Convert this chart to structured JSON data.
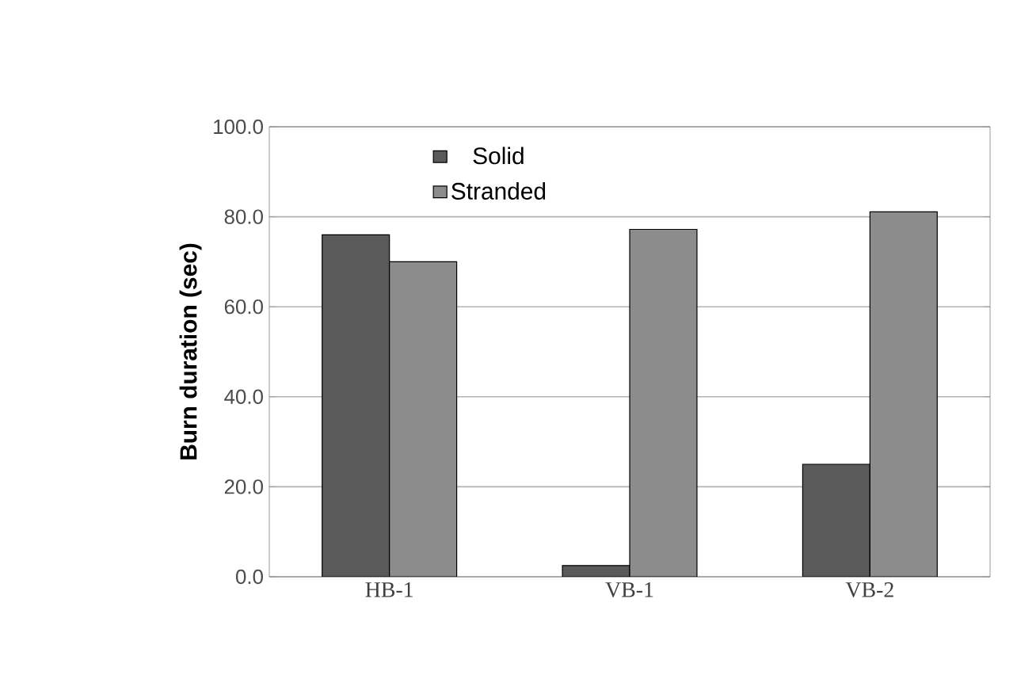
{
  "chart_data": {
    "type": "bar",
    "ylabel": "Burn duration (sec)",
    "categories": [
      "HB-1",
      "VB-1",
      "VB-2"
    ],
    "series": [
      {
        "name": "Solid",
        "color": "#5a5a5a",
        "values": [
          76,
          2.5,
          25
        ]
      },
      {
        "name": "Stranded",
        "color": "#8c8c8c",
        "values": [
          70,
          77.2,
          81.1
        ]
      }
    ],
    "ylim": [
      0,
      100
    ],
    "yticks": [
      {
        "value": 0,
        "label": "0.0"
      },
      {
        "value": 20,
        "label": "20.0"
      },
      {
        "value": 40,
        "label": "40.0"
      },
      {
        "value": 60,
        "label": "60.0"
      },
      {
        "value": 80,
        "label": "80.0"
      },
      {
        "value": 100,
        "label": "100.0"
      }
    ],
    "grid": "y",
    "legend": "top left"
  }
}
